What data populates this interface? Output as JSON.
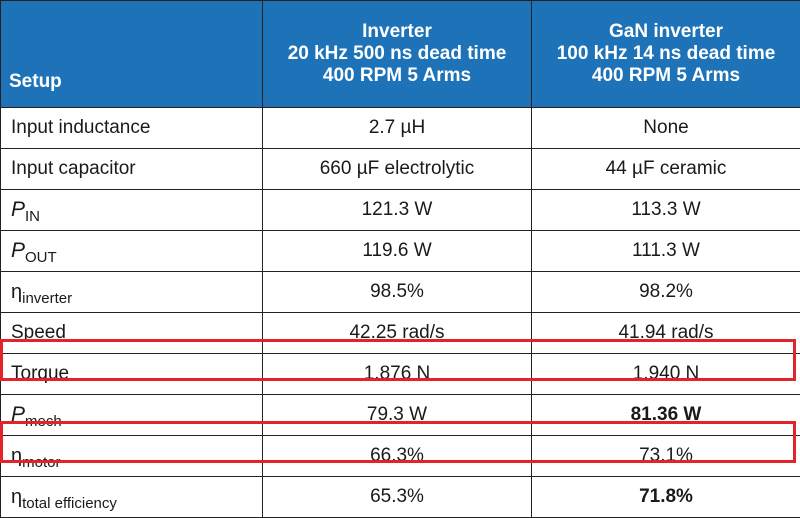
{
  "header": {
    "setup": "Setup",
    "col1": [
      "Inverter",
      "20 kHz 500 ns dead time",
      "400 RPM 5 Arms"
    ],
    "col2": [
      "GaN inverter",
      "100 kHz 14 ns dead time",
      "400 RPM 5 Arms"
    ]
  },
  "rows": [
    {
      "label": "Input inductance",
      "v1": "2.7 µH",
      "v2": "None"
    },
    {
      "label": "Input capacitor",
      "v1": "660 µF electrolytic",
      "v2": "44 µF ceramic"
    },
    {
      "label_main": "P",
      "label_sub": "IN",
      "v1": "121.3 W",
      "v2": "113.3 W"
    },
    {
      "label_main": "P",
      "label_sub": "OUT",
      "v1": "119.6 W",
      "v2": "111.3 W"
    },
    {
      "label_main": "η",
      "label_sub": "inverter",
      "v1": "98.5%",
      "v2": "98.2%"
    },
    {
      "label": "Speed",
      "v1": "42.25 rad/s",
      "v2": "41.94 rad/s"
    },
    {
      "label": "Torque",
      "v1": "1.876 N",
      "v2": "1.940 N"
    },
    {
      "label_main": "P",
      "label_sub": "mech",
      "v1": "79.3 W",
      "v2": "81.36 W"
    },
    {
      "label_main": "η",
      "label_sub": "motor",
      "v1": "66.3%",
      "v2": "73.1%"
    },
    {
      "label_main": "η",
      "label_sub": "total efficiency",
      "v1": "65.3%",
      "v2": "71.8%"
    }
  ],
  "highlight_color": "#e2232a",
  "header_color": "#1e73b8"
}
